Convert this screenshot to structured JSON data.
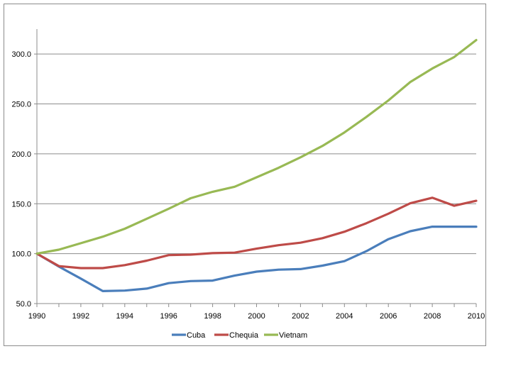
{
  "chart_data": {
    "type": "line",
    "title": "",
    "xlabel": "",
    "ylabel": "",
    "x": [
      1990,
      1991,
      1992,
      1993,
      1994,
      1995,
      1996,
      1997,
      1998,
      1999,
      2000,
      2001,
      2002,
      2003,
      2004,
      2005,
      2006,
      2007,
      2008,
      2009,
      2010
    ],
    "x_ticks": [
      "1990",
      "1992",
      "1994",
      "1996",
      "1998",
      "2000",
      "2002",
      "2004",
      "2006",
      "2008",
      "2010"
    ],
    "y_ticks": [
      "50.0",
      "100.0",
      "150.0",
      "200.0",
      "250.0",
      "300.0"
    ],
    "ylim": [
      50,
      325
    ],
    "xlim": [
      1990,
      2010
    ],
    "grid": "horizontal",
    "legend_position": "bottom",
    "series": [
      {
        "name": "Cuba",
        "color": "#4a7ebb",
        "values": [
          100.0,
          87.0,
          75.0,
          62.5,
          63.0,
          65.0,
          70.5,
          72.5,
          73.0,
          78.0,
          82.0,
          84.0,
          84.5,
          88.0,
          92.5,
          102.5,
          114.5,
          122.5,
          127.0,
          127.0,
          127.0
        ]
      },
      {
        "name": "Chequia",
        "color": "#be4b48",
        "values": [
          100.0,
          87.5,
          85.5,
          85.5,
          88.5,
          93.0,
          98.5,
          99.0,
          100.5,
          101.0,
          105.0,
          108.5,
          111.0,
          115.5,
          122.0,
          130.5,
          140.0,
          150.5,
          156.0,
          148.0,
          153.0
        ]
      },
      {
        "name": "Vietnam",
        "color": "#98b954",
        "values": [
          100.0,
          104.0,
          110.5,
          117.0,
          125.0,
          135.0,
          145.0,
          155.5,
          162.0,
          167.0,
          176.5,
          186.0,
          196.5,
          208.0,
          221.5,
          237.0,
          253.5,
          272.0,
          285.5,
          297.0,
          314.0
        ]
      }
    ]
  }
}
